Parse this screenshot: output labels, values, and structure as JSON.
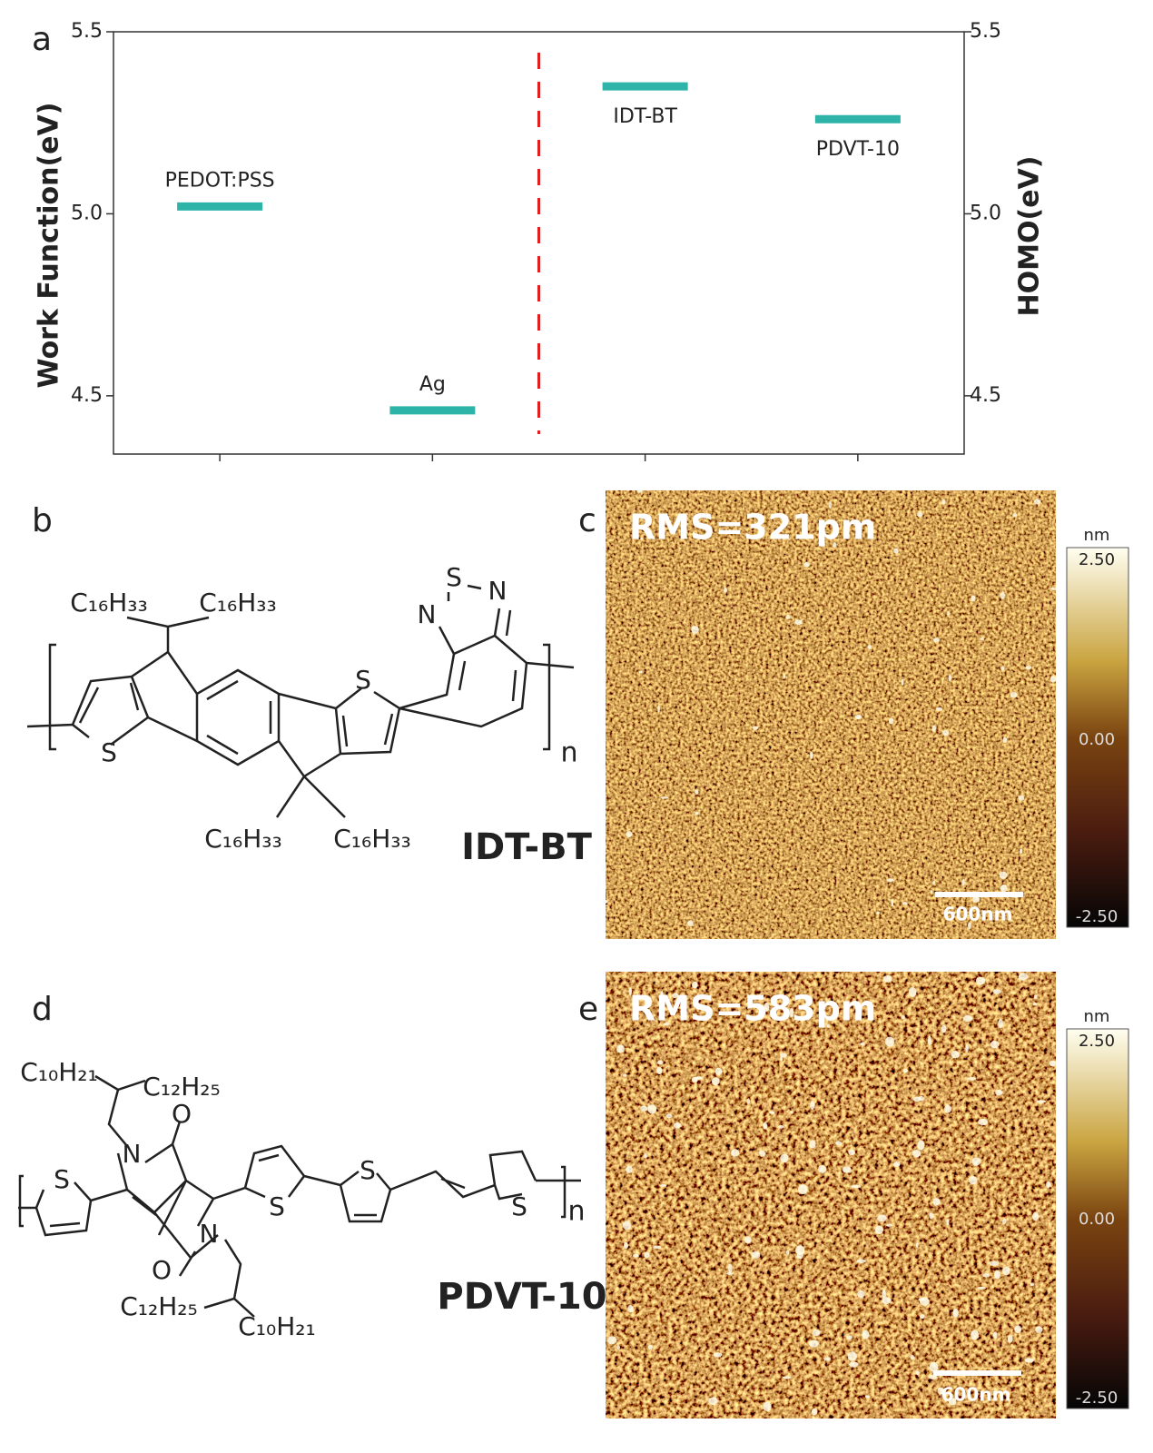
{
  "panel_labels": [
    "a",
    "b",
    "c",
    "d",
    "e"
  ],
  "chart_data": {
    "type": "level",
    "y_label": "Work Function(eV)",
    "y2_label": "HOMO(eV)",
    "categories": [
      "PEDOT:PSS",
      "Ag",
      "IDT-BT",
      "PDVT-10"
    ],
    "values": [
      5.02,
      4.46,
      5.35,
      5.26
    ],
    "color": "#2db3a7",
    "ylim": [
      4.34,
      5.5
    ],
    "yticks": [
      5.5,
      {
        "value": 5,
        "label": "5.0"
      },
      4.5
    ],
    "y2lim": [
      4.34,
      5.5
    ],
    "y2ticks": [
      5.5,
      {
        "value": 5,
        "label": "5.0"
      },
      4.5
    ]
  },
  "structures": [
    {
      "name": "IDT-BT",
      "substituents": [
        "C₁₆H₃₃",
        "C₁₆H₃₃",
        "C₁₆H₃₃",
        "C₁₆H₃₃"
      ],
      "atoms": [
        "S",
        "S",
        "S",
        "N",
        "N"
      ],
      "repeat": "n"
    },
    {
      "name": "PDVT-10",
      "substituents": [
        "C₁₀H₂₁",
        "C₁₂H₂₅",
        "C₁₂H₂₅",
        "C₁₀H₂₁"
      ],
      "atoms": [
        "O",
        "N",
        "N",
        "O",
        "S",
        "S",
        "S",
        "S"
      ],
      "repeat": "n"
    }
  ],
  "afm": [
    {
      "rms": "RMS=321pm",
      "scale_bar": "600nm",
      "unit": "nm",
      "colorbar_ticks": [
        "2.50",
        "0.00",
        "-2.50"
      ]
    },
    {
      "rms": "RMS=583pm",
      "scale_bar": "600nm",
      "unit": "nm",
      "colorbar_ticks": [
        "2.50",
        "0.00",
        "-2.50"
      ]
    }
  ]
}
